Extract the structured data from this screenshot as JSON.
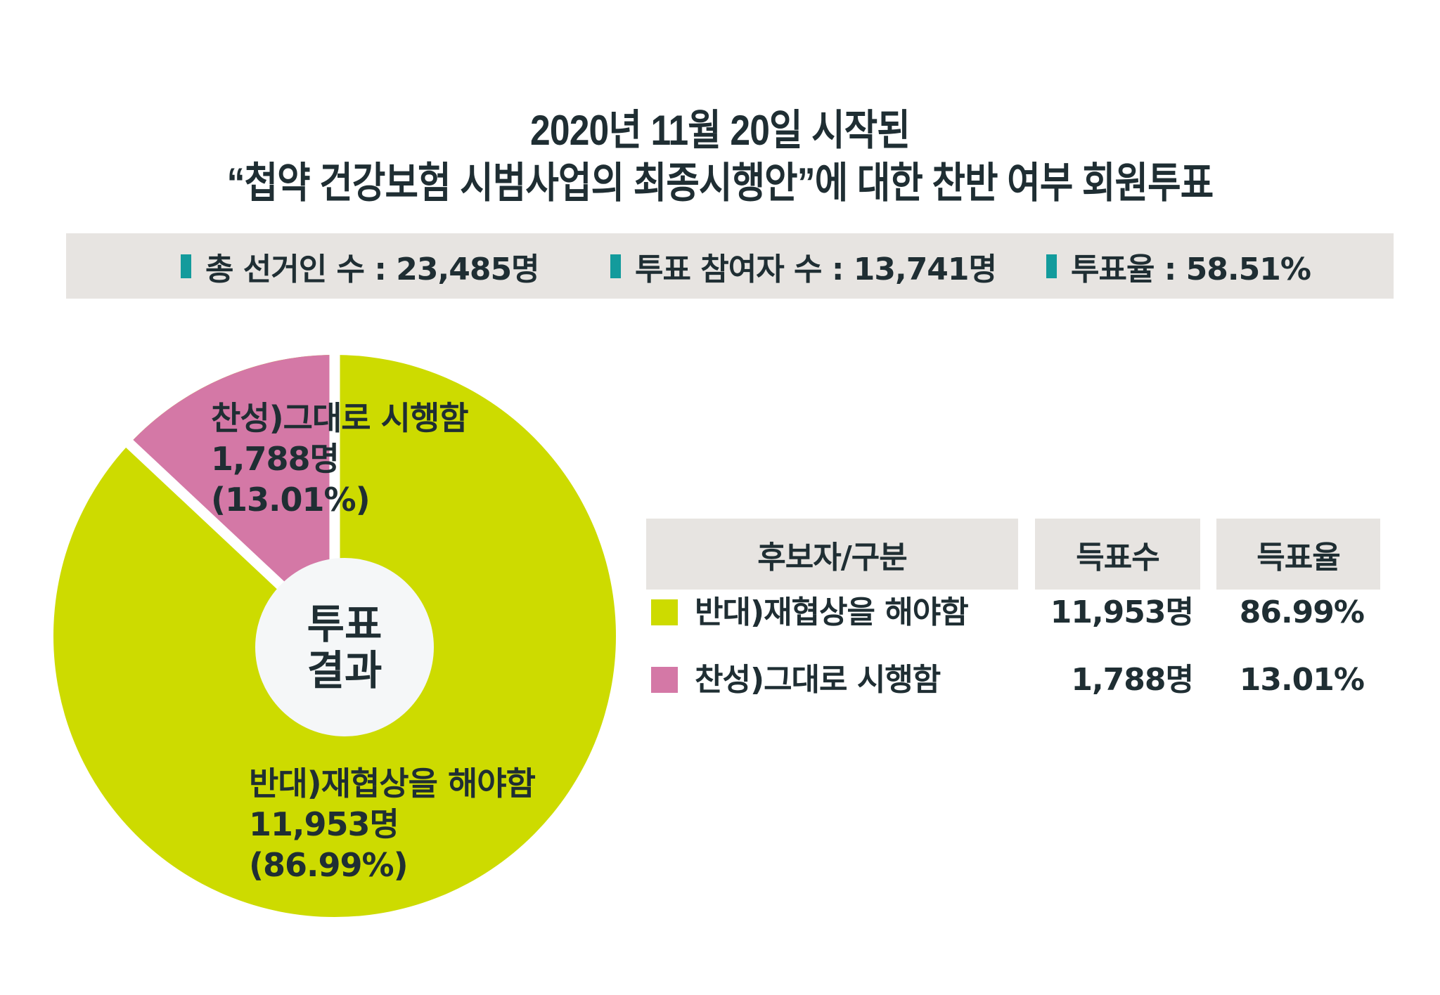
{
  "title": {
    "line1": "2020년 11월 20일 시작된",
    "line2": "“첩약 건강보험 시범사업의 최종시행안”에 대한 찬반 여부 회원투표"
  },
  "stats": [
    {
      "label": "총 선거인 수",
      "value": "23,485명",
      "text": "총 선거인 수 : 23,485명"
    },
    {
      "label": "투표 참여자 수",
      "value": "13,741명",
      "text": "투표 참여자 수 : 13,741명"
    },
    {
      "label": "투표율",
      "value": "58.51%",
      "text": "투표율 : 58.51%"
    }
  ],
  "colors": {
    "oppose": "#cddb00",
    "support": "#d478a6",
    "marker": "#139b9c",
    "panel": "#e7e4e1",
    "center": "#f5f7f8",
    "text": "#1f2e33"
  },
  "pie": {
    "center_label_line1": "투표",
    "center_label_line2": "결과",
    "support_label": {
      "name": "찬성)그대로 시행함",
      "count": "1,788명",
      "pct": "(13.01%)"
    },
    "oppose_label": {
      "name": "반대)재협상을 해야함",
      "count": "11,953명",
      "pct": "(86.99%)"
    }
  },
  "table": {
    "headers": [
      "후보자/구분",
      "득표수",
      "득표율"
    ],
    "rows": [
      {
        "name": "반대)재협상을 해야함",
        "count": "11,953명",
        "pct": "86.99%"
      },
      {
        "name": "찬성)그대로 시행함",
        "count": "1,788명",
        "pct": "13.01%"
      }
    ]
  },
  "chart_data": {
    "type": "pie",
    "title": "2020년 11월 20일 시작된 “첩약 건강보험 시범사업의 최종시행안”에 대한 찬반 여부 회원투표",
    "center_label": "투표 결과",
    "categories": [
      "반대)재협상을 해야함",
      "찬성)그대로 시행함"
    ],
    "values": [
      11953,
      1788
    ],
    "percentages": [
      86.99,
      13.01
    ],
    "colors": [
      "#cddb00",
      "#d478a6"
    ],
    "donut": true,
    "summary": {
      "total_electors": 23485,
      "participants": 13741,
      "turnout_pct": 58.51
    },
    "legend_position": "right (table)"
  }
}
